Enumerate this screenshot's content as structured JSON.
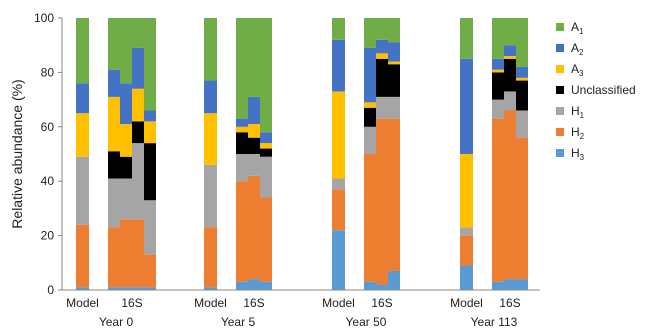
{
  "chart_data": {
    "type": "bar",
    "stacked": true,
    "ylabel": "Relative abundance (%)",
    "ylim": [
      0,
      100
    ],
    "yticks": [
      0,
      20,
      40,
      60,
      80,
      100
    ],
    "grid": false,
    "legend_position": "right",
    "series": [
      {
        "name": "H",
        "sub": "3",
        "color": "#5b9bd5"
      },
      {
        "name": "H",
        "sub": "2",
        "color": "#ed7d31"
      },
      {
        "name": "H",
        "sub": "1",
        "color": "#a5a5a5"
      },
      {
        "name": "Unclassified",
        "sub": "",
        "color": "#000000"
      },
      {
        "name": "A",
        "sub": "3",
        "color": "#ffc000"
      },
      {
        "name": "A",
        "sub": "2",
        "color": "#4472c4"
      },
      {
        "name": "A",
        "sub": "1",
        "color": "#70ad47"
      }
    ],
    "legend_order": [
      6,
      5,
      4,
      3,
      2,
      1,
      0
    ],
    "groups": [
      {
        "year_label": "Year 0",
        "model_label": "Model",
        "s16_label": "16S",
        "model": [
          1,
          23,
          25,
          0,
          16,
          11,
          24
        ],
        "s16": [
          [
            1,
            22,
            18,
            10,
            20,
            10,
            19
          ],
          [
            1,
            25,
            15,
            8,
            12,
            15,
            24
          ],
          [
            1,
            25,
            28,
            8,
            12,
            15,
            11
          ],
          [
            1,
            12,
            20,
            21,
            8,
            4,
            34
          ]
        ]
      },
      {
        "year_label": "Year 5",
        "model_label": "Model",
        "s16_label": "16S",
        "model": [
          1,
          22,
          23,
          0,
          19,
          12,
          23
        ],
        "s16": [
          [
            3,
            37,
            10,
            8,
            2,
            3,
            37
          ],
          [
            4,
            38,
            8,
            6,
            5,
            10,
            29
          ],
          [
            3,
            31,
            15,
            3,
            2,
            4,
            42
          ]
        ]
      },
      {
        "year_label": "Year 50",
        "model_label": "Model",
        "s16_label": "16S",
        "model": [
          22,
          15,
          4,
          0,
          32,
          19,
          8
        ],
        "s16": [
          [
            3,
            47,
            10,
            7,
            2,
            20,
            11
          ],
          [
            2,
            61,
            8,
            14,
            2,
            5,
            8
          ],
          [
            7,
            56,
            8,
            12,
            1,
            7,
            9
          ]
        ]
      },
      {
        "year_label": "Year 113",
        "model_label": "Model",
        "s16_label": "16S",
        "model": [
          9,
          11,
          3,
          0,
          27,
          35,
          15
        ],
        "s16": [
          [
            3,
            60,
            7,
            10,
            1,
            4,
            15
          ],
          [
            4,
            62,
            7,
            12,
            1,
            4,
            10
          ],
          [
            4,
            52,
            10,
            11,
            1,
            4,
            18
          ]
        ]
      }
    ]
  }
}
